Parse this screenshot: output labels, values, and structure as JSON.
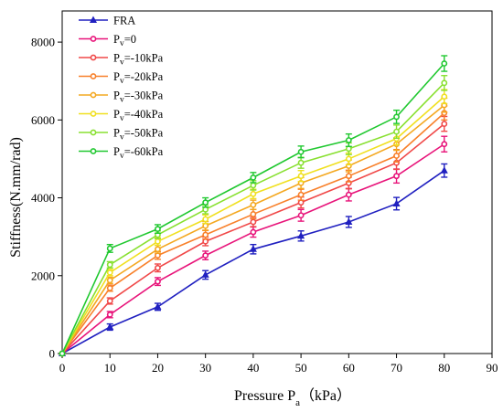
{
  "chart_data": {
    "type": "line",
    "xlabel": {
      "base": "Pressure P",
      "sub": "a",
      "suffix": "（kPa）"
    },
    "ylabel": "Stiffness(N.mm/rad)",
    "xlim": [
      0,
      90
    ],
    "ylim": [
      0,
      8800
    ],
    "xticks": [
      0,
      10,
      20,
      30,
      40,
      50,
      60,
      70,
      80,
      90
    ],
    "yticks": [
      0,
      2000,
      4000,
      6000,
      8000
    ],
    "legend_position": "top-left",
    "x": [
      0,
      10,
      20,
      30,
      40,
      50,
      60,
      70,
      80
    ],
    "series": [
      {
        "name": "FRA",
        "label": {
          "base": "FRA",
          "sub": "",
          "suffix": ""
        },
        "color": "#2020c0",
        "marker": "triangle",
        "values": [
          0,
          680,
          1200,
          2020,
          2680,
          3020,
          3380,
          3850,
          4700
        ],
        "errors": [
          0,
          80,
          90,
          110,
          120,
          130,
          140,
          160,
          170
        ]
      },
      {
        "name": "Pv=0",
        "label": {
          "base": "P",
          "sub": "v",
          "suffix": "=0"
        },
        "color": "#e8147a",
        "marker": "circle",
        "values": [
          0,
          1000,
          1850,
          2520,
          3120,
          3550,
          4080,
          4560,
          5380
        ],
        "errors": [
          0,
          80,
          100,
          110,
          130,
          150,
          160,
          180,
          200
        ]
      },
      {
        "name": "Pv=-10kPa",
        "label": {
          "base": "P",
          "sub": "v",
          "suffix": "=-10kPa"
        },
        "color": "#f04848",
        "marker": "circle",
        "values": [
          0,
          1350,
          2200,
          2880,
          3380,
          3880,
          4380,
          4900,
          5900
        ],
        "errors": [
          0,
          80,
          100,
          110,
          120,
          140,
          150,
          170,
          190
        ]
      },
      {
        "name": "Pv=-20kPa",
        "label": {
          "base": "P",
          "sub": "v",
          "suffix": "=-20kPa"
        },
        "color": "#f8802a",
        "marker": "circle",
        "values": [
          0,
          1680,
          2520,
          3050,
          3580,
          4080,
          4560,
          5080,
          6180
        ],
        "errors": [
          0,
          80,
          100,
          110,
          120,
          140,
          150,
          160,
          180
        ]
      },
      {
        "name": "Pv=-30kPa",
        "label": {
          "base": "P",
          "sub": "v",
          "suffix": "=-30kPa"
        },
        "color": "#f4a820",
        "marker": "circle",
        "values": [
          0,
          1880,
          2680,
          3280,
          3820,
          4380,
          4820,
          5380,
          6380
        ],
        "errors": [
          0,
          80,
          100,
          110,
          120,
          140,
          150,
          160,
          180
        ]
      },
      {
        "name": "Pv=-40kPa",
        "label": {
          "base": "P",
          "sub": "v",
          "suffix": "=-40kPa"
        },
        "color": "#f0e020",
        "marker": "circle",
        "values": [
          0,
          2080,
          2880,
          3450,
          4100,
          4560,
          5000,
          5520,
          6600
        ],
        "errors": [
          0,
          80,
          100,
          110,
          120,
          140,
          150,
          160,
          180
        ]
      },
      {
        "name": "Pv=-50kPa",
        "label": {
          "base": "P",
          "sub": "v",
          "suffix": "=-50kPa"
        },
        "color": "#88e030",
        "marker": "circle",
        "values": [
          0,
          2280,
          3050,
          3700,
          4320,
          4900,
          5260,
          5700,
          6950
        ],
        "errors": [
          0,
          80,
          100,
          110,
          120,
          140,
          150,
          170,
          190
        ]
      },
      {
        "name": "Pv=-60kPa",
        "label": {
          "base": "P",
          "sub": "v",
          "suffix": "=-60kPa"
        },
        "color": "#20c830",
        "marker": "circle",
        "values": [
          0,
          2700,
          3200,
          3880,
          4520,
          5180,
          5480,
          6080,
          7450
        ],
        "errors": [
          0,
          100,
          110,
          120,
          130,
          150,
          160,
          170,
          200
        ]
      }
    ]
  }
}
